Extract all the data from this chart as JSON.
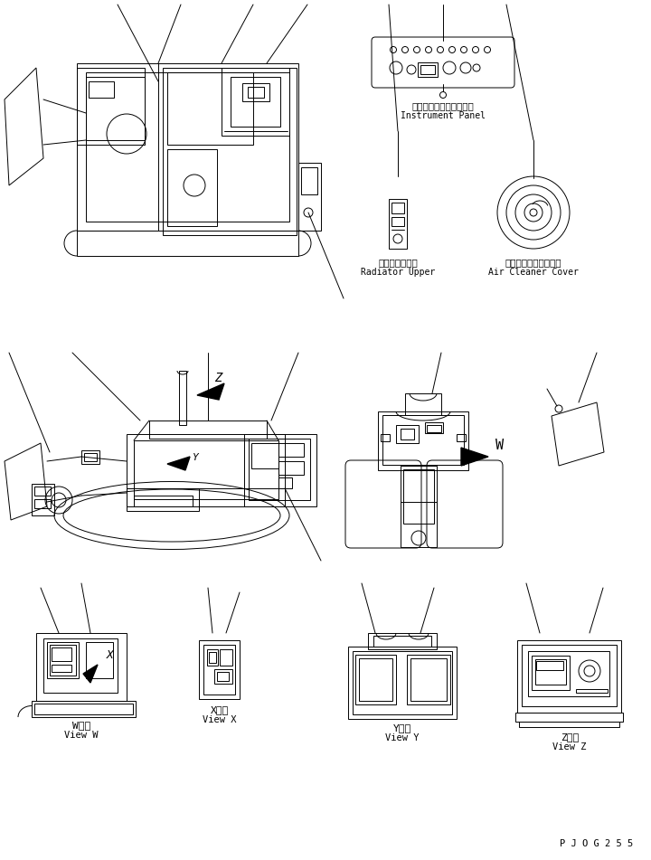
{
  "bg_color": "#ffffff",
  "line_color": "#000000",
  "font_color": "#000000",
  "part_code": "P J O G 2 5 5",
  "labels": {
    "instrument_panel_jp": "インスツルメントパネル",
    "instrument_panel_en": "Instrument Panel",
    "radiator_upper_jp": "ラジエータ上面",
    "radiator_upper_en": "Radiator Upper",
    "air_cleaner_jp": "エアークリーナカバー",
    "air_cleaner_en": "Air Cleaner Cover",
    "view_w_jp": "W　視",
    "view_w_en": "View W",
    "view_x_jp": "X　視",
    "view_x_en": "View X",
    "view_y_jp": "Y　視",
    "view_y_en": "View Y",
    "view_z_jp": "Z　視",
    "view_z_en": "View Z"
  }
}
